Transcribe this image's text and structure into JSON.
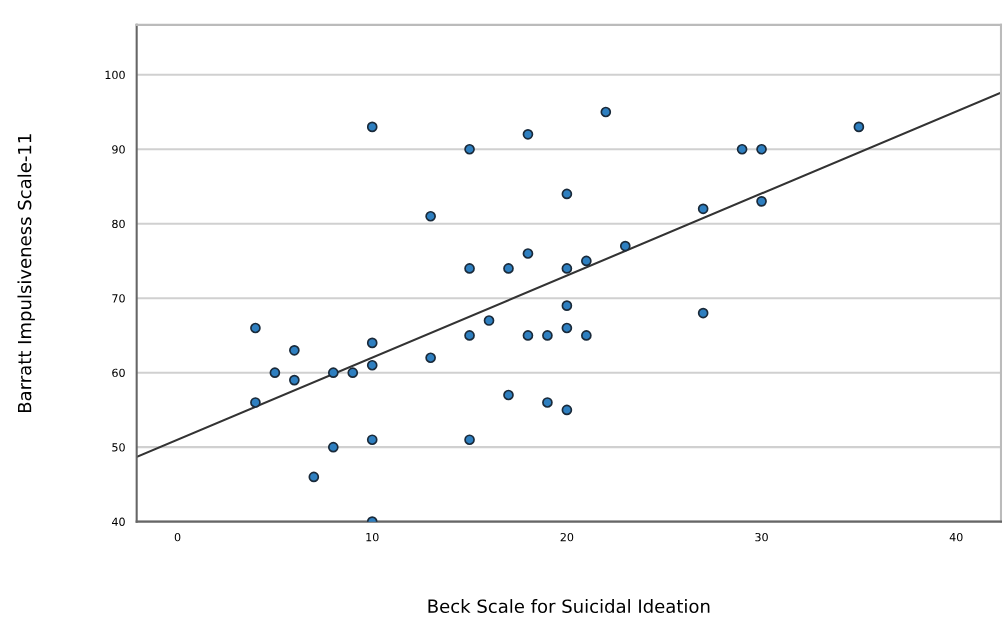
{
  "chart_data": {
    "type": "scatter",
    "xlabel": "Beck Scale for Suicidal Ideation",
    "ylabel": "Barratt Impulsiveness Scale-11",
    "xlim": [
      -2.1,
      42.3
    ],
    "ylim": [
      40,
      106.7
    ],
    "xticks": [
      0,
      10,
      20,
      30,
      40
    ],
    "yticks": [
      40,
      50,
      60,
      70,
      80,
      90,
      100
    ],
    "grid": "y",
    "series": [
      {
        "marker": "circle",
        "color": "#2e7fc0",
        "x": [
          4,
          4,
          5,
          6,
          6,
          7,
          8,
          8,
          9,
          10,
          10,
          10,
          10,
          10,
          13,
          13,
          15,
          15,
          15,
          15,
          16,
          17,
          17,
          18,
          18,
          18,
          19,
          19,
          20,
          20,
          20,
          20,
          20,
          21,
          21,
          22,
          23,
          27,
          27,
          29,
          30,
          30,
          35
        ],
        "values": [
          66,
          56,
          60,
          63,
          59,
          46,
          60,
          50,
          60,
          93,
          64,
          61,
          51,
          40,
          81,
          62,
          90,
          74,
          65,
          51,
          67,
          74,
          57,
          92,
          76,
          65,
          65,
          56,
          84,
          74,
          69,
          66,
          55,
          75,
          65,
          95,
          77,
          82,
          68,
          90,
          90,
          83,
          93
        ]
      },
      {
        "type": "line",
        "color": "#333333",
        "x": [
          -2.1,
          42.3
        ],
        "values": [
          48.7,
          97.6
        ]
      }
    ]
  }
}
